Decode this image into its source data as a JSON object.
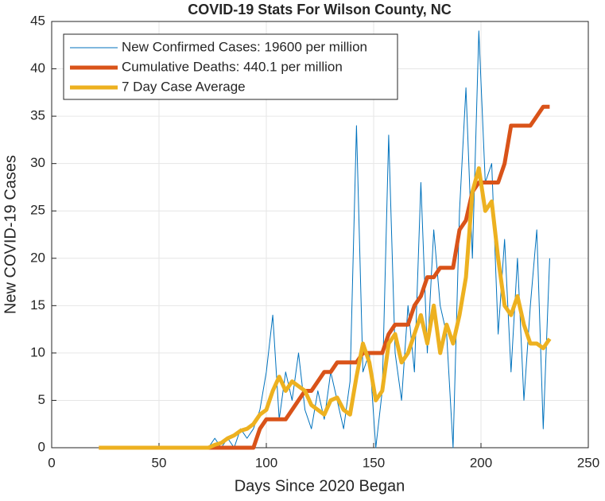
{
  "chart_data": {
    "type": "line",
    "title": "COVID-19 Stats For Wilson County, NC",
    "xlabel": "Days Since 2020 Began",
    "ylabel": "New COVID-19 Cases",
    "x": [
      22,
      25,
      28,
      31,
      34,
      37,
      40,
      43,
      46,
      49,
      52,
      55,
      58,
      61,
      64,
      67,
      70,
      73,
      76,
      79,
      82,
      85,
      88,
      91,
      94,
      97,
      100,
      103,
      106,
      109,
      112,
      115,
      118,
      121,
      124,
      127,
      130,
      133,
      136,
      139,
      142,
      145,
      148,
      151,
      154,
      157,
      160,
      163,
      166,
      169,
      172,
      175,
      178,
      181,
      184,
      187,
      190,
      193,
      196,
      199,
      202,
      205,
      208,
      211,
      214,
      217,
      220,
      223,
      226,
      229,
      232
    ],
    "series": [
      {
        "name": "New Confirmed Cases: 19600 per million",
        "color": "#0072BD",
        "width": 1,
        "values": [
          0,
          0,
          0,
          0,
          0,
          0,
          0,
          0,
          0,
          0,
          0,
          0,
          0,
          0,
          0,
          0,
          0,
          0,
          1,
          0,
          1,
          0,
          2,
          1,
          2,
          4,
          8,
          14,
          3,
          8,
          5,
          10,
          4,
          2,
          6,
          3,
          8,
          5,
          2,
          7,
          34,
          8,
          10,
          0,
          6,
          33,
          10,
          5,
          15,
          8,
          28,
          10,
          23,
          15,
          12,
          0,
          25,
          38,
          20,
          44,
          28,
          30,
          12,
          22,
          8,
          20,
          5,
          15,
          23,
          2,
          20
        ]
      },
      {
        "name": "Cumulative Deaths: 440.1 per million",
        "color": "#D95319",
        "width": 5,
        "values": [
          0,
          0,
          0,
          0,
          0,
          0,
          0,
          0,
          0,
          0,
          0,
          0,
          0,
          0,
          0,
          0,
          0,
          0,
          0,
          0,
          0,
          0,
          0,
          0,
          0,
          2,
          3,
          3,
          3,
          3,
          4,
          5,
          6,
          6,
          7,
          8,
          8,
          9,
          9,
          9,
          9,
          10,
          10,
          10,
          10,
          12,
          13,
          13,
          13,
          15,
          16,
          18,
          18,
          19,
          19,
          19,
          23,
          24,
          27,
          28,
          28,
          28,
          28,
          30,
          34,
          34,
          34,
          34,
          35,
          36,
          36
        ]
      },
      {
        "name": "7 Day Case Average",
        "color": "#EDB120",
        "width": 5,
        "values": [
          0,
          0,
          0,
          0,
          0,
          0,
          0,
          0,
          0,
          0,
          0,
          0,
          0,
          0,
          0,
          0,
          0,
          0,
          0.3,
          0.5,
          1,
          1.3,
          1.8,
          2,
          2.5,
          3.5,
          4,
          6,
          7.5,
          6,
          7,
          6.5,
          6,
          4.5,
          4,
          3.5,
          5,
          5.3,
          4,
          3.5,
          7.5,
          11,
          9,
          5,
          6,
          11,
          12,
          9,
          10,
          12,
          14,
          11,
          15,
          10,
          13,
          11,
          14,
          18,
          27,
          29.5,
          25,
          26,
          20,
          15,
          14,
          16,
          13,
          11,
          11,
          10.5,
          11.5
        ]
      }
    ],
    "xlim": [
      0,
      250
    ],
    "xticks": [
      0,
      50,
      100,
      150,
      200,
      250
    ],
    "ylim": [
      0,
      45
    ],
    "yticks": [
      0,
      5,
      10,
      15,
      20,
      25,
      30,
      35,
      40,
      45
    ],
    "grid": true
  }
}
